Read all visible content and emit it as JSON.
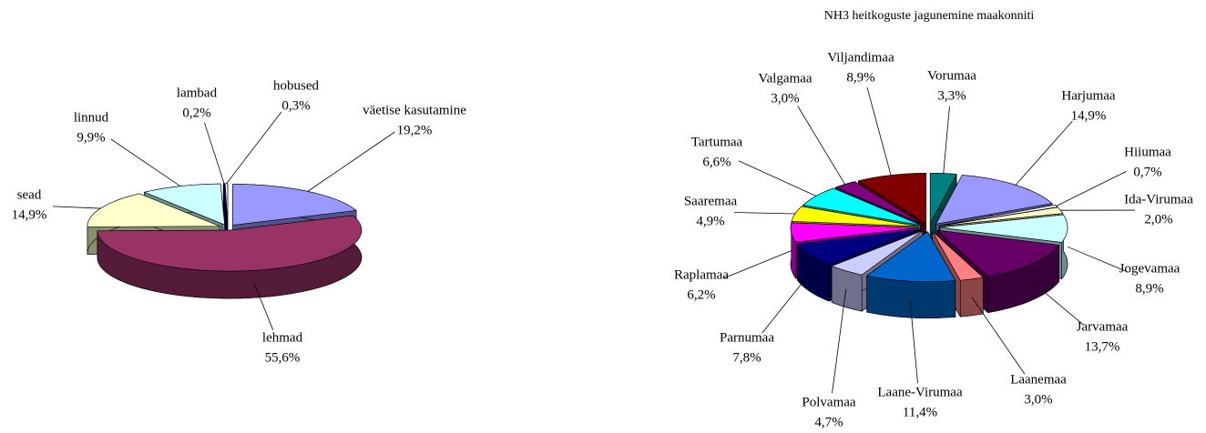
{
  "chart_data": [
    {
      "type": "pie",
      "categories": [
        "väetise kasutamine",
        "lehmad",
        "sead",
        "linnud",
        "lambad",
        "hobused"
      ],
      "values": [
        19.2,
        55.6,
        14.9,
        9.9,
        0.2,
        0.3
      ],
      "value_labels": [
        "19,2%",
        "55,6%",
        "14,9%",
        "9,9%",
        "0,2%",
        "0,3%"
      ],
      "colors": [
        "#9999ff",
        "#993366",
        "#ffffcc",
        "#ccffff",
        "#000080",
        "#ffffff"
      ]
    },
    {
      "type": "pie",
      "title": "NH3 heitkoguste jagunemine maakonniti",
      "categories": [
        "Vorumaa",
        "Harjumaa",
        "Hiiumaa",
        "Ida-Virumaa",
        "Jogevamaa",
        "Jarvamaa",
        "Laanemaa",
        "Laane-Virumaa",
        "Polvamaa",
        "Parnumaa",
        "Raplamaa",
        "Saaremaa",
        "Tartumaa",
        "Valgamaa",
        "Viljandimaa"
      ],
      "values": [
        3.3,
        14.9,
        0.7,
        2.0,
        8.9,
        13.7,
        3.0,
        11.4,
        4.7,
        7.8,
        6.2,
        4.9,
        6.6,
        3.0,
        8.9
      ],
      "value_labels": [
        "3,3%",
        "14,9%",
        "0,7%",
        "2,0%",
        "8,9%",
        "13,7%",
        "3,0%",
        "11,4%",
        "4,7%",
        "7,8%",
        "6,2%",
        "4,9%",
        "6,6%",
        "3,0%",
        "8,9%"
      ],
      "colors": [
        "#008080",
        "#9999ff",
        "#ffffff",
        "#ffffcc",
        "#ccffff",
        "#660066",
        "#ff8080",
        "#0066cc",
        "#ccccff",
        "#000080",
        "#ff00ff",
        "#ffff00",
        "#00ffff",
        "#800080",
        "#800000"
      ]
    }
  ]
}
